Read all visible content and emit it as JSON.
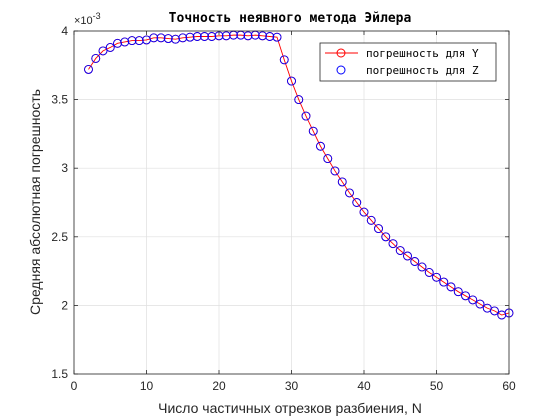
{
  "chart_data": {
    "type": "line",
    "title": "Точность неявного метода Эйлера",
    "xlabel": "Число частичных отрезков разбиения, N",
    "ylabel": "Средняя абсолютная погрешность",
    "y_exponent_label": "×10",
    "y_exponent_power": "-3",
    "xlim": [
      0,
      60
    ],
    "ylim": [
      0.0015,
      0.004
    ],
    "x_ticks": [
      0,
      10,
      20,
      30,
      40,
      50,
      60
    ],
    "x_tick_labels": [
      "0",
      "10",
      "20",
      "30",
      "40",
      "50",
      "60"
    ],
    "y_ticks": [
      0.0015,
      0.002,
      0.0025,
      0.003,
      0.0035,
      0.004
    ],
    "y_tick_labels": [
      "1.5",
      "2",
      "2.5",
      "3",
      "3.5",
      "4"
    ],
    "grid": true,
    "legend_position": "top-right",
    "x": [
      2,
      3,
      4,
      5,
      6,
      7,
      8,
      9,
      10,
      11,
      12,
      13,
      14,
      15,
      16,
      17,
      18,
      19,
      20,
      21,
      22,
      23,
      24,
      25,
      26,
      27,
      28,
      29,
      30,
      31,
      32,
      33,
      34,
      35,
      36,
      37,
      38,
      39,
      40,
      41,
      42,
      43,
      44,
      45,
      46,
      47,
      48,
      49,
      50,
      51,
      52,
      53,
      54,
      55,
      56,
      57,
      58,
      59,
      60
    ],
    "series": [
      {
        "name": "погрешность для Y",
        "color": "#ff0000",
        "marker": "circle",
        "line": true,
        "values": [
          0.00372,
          0.0038,
          0.003855,
          0.00388,
          0.00391,
          0.00392,
          0.00393,
          0.00393,
          0.003935,
          0.00395,
          0.00395,
          0.003945,
          0.00394,
          0.00395,
          0.003955,
          0.00396,
          0.00396,
          0.00396,
          0.003965,
          0.003965,
          0.00397,
          0.00397,
          0.003965,
          0.00397,
          0.003965,
          0.00396,
          0.003955,
          0.00379,
          0.003635,
          0.0035,
          0.00338,
          0.00327,
          0.00316,
          0.00307,
          0.00298,
          0.0029,
          0.00282,
          0.00275,
          0.00268,
          0.00262,
          0.00256,
          0.0025,
          0.00245,
          0.0024,
          0.00236,
          0.00232,
          0.00228,
          0.00224,
          0.002205,
          0.00217,
          0.002135,
          0.0021,
          0.00207,
          0.00204,
          0.00201,
          0.00198,
          0.00196,
          0.00193,
          0.001945
        ]
      },
      {
        "name": "погрешность для Z",
        "color": "#0000ff",
        "marker": "circle",
        "line": false,
        "values": [
          0.00372,
          0.0038,
          0.003855,
          0.00388,
          0.00391,
          0.00392,
          0.00393,
          0.00393,
          0.003935,
          0.00395,
          0.00395,
          0.003945,
          0.00394,
          0.00395,
          0.003955,
          0.00396,
          0.00396,
          0.00396,
          0.003965,
          0.003965,
          0.00397,
          0.00397,
          0.003965,
          0.00397,
          0.003965,
          0.00396,
          0.003955,
          0.00379,
          0.003635,
          0.0035,
          0.00338,
          0.00327,
          0.00316,
          0.00307,
          0.00298,
          0.0029,
          0.00282,
          0.00275,
          0.00268,
          0.00262,
          0.00256,
          0.0025,
          0.00245,
          0.0024,
          0.00236,
          0.00232,
          0.00228,
          0.00224,
          0.002205,
          0.00217,
          0.002135,
          0.0021,
          0.00207,
          0.00204,
          0.00201,
          0.00198,
          0.00196,
          0.00193,
          0.001945
        ]
      }
    ]
  }
}
